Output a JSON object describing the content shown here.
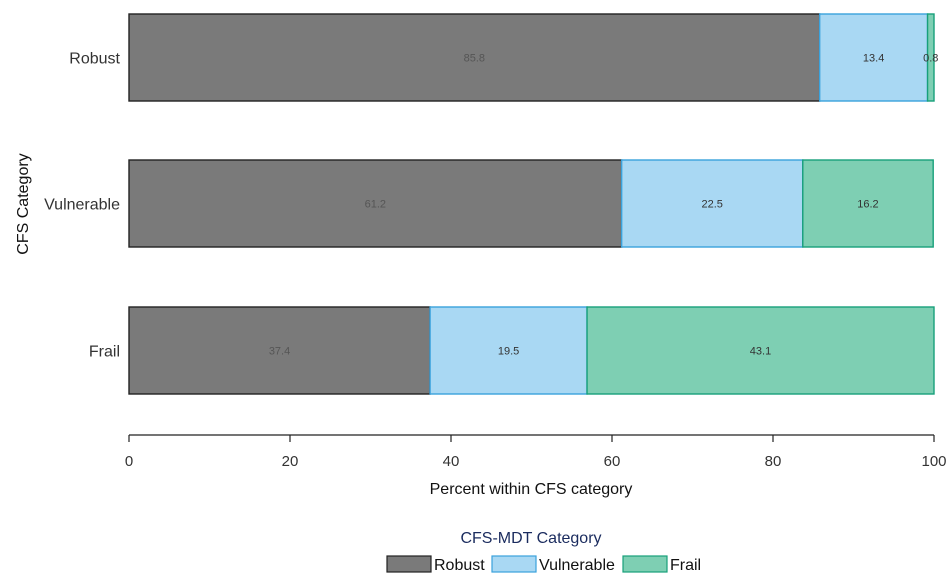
{
  "chart_data": {
    "type": "bar",
    "orientation": "horizontal",
    "stacked": true,
    "categories": [
      "Robust",
      "Vulnerable",
      "Frail"
    ],
    "series": [
      {
        "name": "Robust",
        "values": [
          85.8,
          61.2,
          37.4
        ],
        "color": "#7a7a7a",
        "stroke": "#222222",
        "label_color": "#555555"
      },
      {
        "name": "Vulnerable",
        "values": [
          13.4,
          22.5,
          19.5
        ],
        "color": "#a9d8f3",
        "stroke": "#3aa2dc",
        "label_color": "#333333"
      },
      {
        "name": "Frail",
        "values": [
          0.8,
          16.2,
          43.1
        ],
        "color": "#7ecfb3",
        "stroke": "#17a07a",
        "label_color": "#333333"
      }
    ],
    "xlabel": "Percent within CFS category",
    "ylabel": "CFS Category",
    "xlim": [
      0,
      100
    ],
    "xticks": [
      0,
      20,
      40,
      60,
      80,
      100
    ],
    "legend": {
      "title": "CFS-MDT Category",
      "title_color": "#1a2b5e",
      "position": "bottom"
    },
    "grid": false
  }
}
